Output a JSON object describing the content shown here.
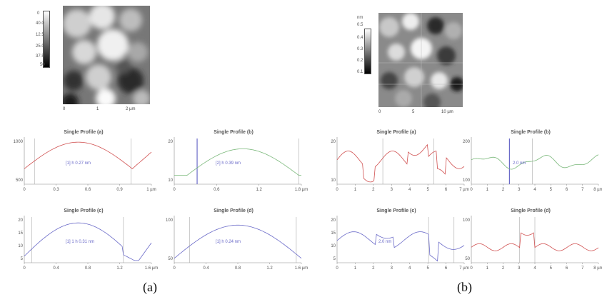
{
  "caption_a": "(a)",
  "caption_b": "(b)",
  "panel_a": {
    "colorbar_labels": [
      "0",
      "40.0",
      "12.5",
      "25.0",
      "37.5",
      "50"
    ],
    "image_ticks": [
      "0",
      "1",
      "2 µm"
    ],
    "profiles": [
      {
        "title": "Single Profile (a)",
        "x_ticks": [
          "0",
          "0.3",
          "0.6",
          "0.9",
          "1 µm"
        ],
        "y_ticks": [
          "1000",
          "500"
        ],
        "annotation": "[1]    h  0.27 nm"
      },
      {
        "title": "Single Profile (b)",
        "x_ticks": [
          "0",
          "0.6",
          "1.2",
          "1.8 µm"
        ],
        "y_ticks": [
          "20",
          "10"
        ],
        "annotation": "[2]    h  0.39 nm"
      },
      {
        "title": "Single Profile (c)",
        "x_ticks": [
          "0",
          "0.4",
          "0.8",
          "1.2",
          "1.6 µm"
        ],
        "y_ticks": [
          "20",
          "15",
          "10",
          "5"
        ],
        "annotation": "[1] 1    h  0.31 nm"
      },
      {
        "title": "Single Profile (d)",
        "x_ticks": [
          "0",
          "0.4",
          "0.8",
          "1.2",
          "1.6 µm"
        ],
        "y_ticks": [
          "100",
          "50"
        ],
        "annotation": "[1]    h    0.24 nm"
      }
    ]
  },
  "panel_b": {
    "colorbar_labels": [
      "nm",
      "0.5",
      "0.4",
      "0.3",
      "0.2",
      "0.1"
    ],
    "image_ticks": [
      "0",
      "5",
      "10 µm"
    ],
    "profiles": [
      {
        "title": "Single Profile (a)",
        "x_ticks": [
          "0",
          "1",
          "2",
          "3",
          "4",
          "5",
          "6",
          "7 µm"
        ],
        "y_ticks": [
          "20",
          "10"
        ],
        "annotation": ""
      },
      {
        "title": "Single Profile (b)",
        "x_ticks": [
          "0",
          "1",
          "2",
          "3",
          "4",
          "5",
          "6",
          "7",
          "8 µm"
        ],
        "y_ticks": [
          "200",
          "100"
        ],
        "annotation": "2.0 nm"
      },
      {
        "title": "Single Profile (c)",
        "x_ticks": [
          "0",
          "1",
          "2",
          "3",
          "4",
          "5",
          "6",
          "7 µm"
        ],
        "y_ticks": [
          "20",
          "15",
          "10",
          "5"
        ],
        "annotation": "2.0 nm"
      },
      {
        "title": "Single Profile (d)",
        "x_ticks": [
          "0",
          "1",
          "2",
          "3",
          "4",
          "5",
          "6",
          "7",
          "8 µm"
        ],
        "y_ticks": [
          "100",
          "50"
        ],
        "annotation": ""
      }
    ]
  },
  "colors": {
    "red": "#d05050",
    "blue": "#6a6ac8",
    "green": "#7ab87a",
    "axis": "#888888"
  }
}
